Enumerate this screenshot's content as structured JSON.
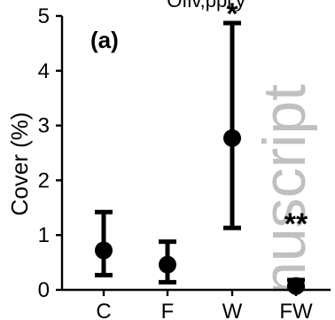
{
  "chart_data": {
    "type": "scatter",
    "panel_label": "(a)",
    "top_partial_text": "' ‘ ‘Ofiv,ppi‘y",
    "ylabel": "Cover (%)",
    "xlabel": "",
    "ylim": [
      0,
      5
    ],
    "y_ticks": [
      "0",
      "1",
      "2",
      "3",
      "4",
      "5"
    ],
    "categories": [
      "C",
      "F",
      "W",
      "FW"
    ],
    "series": [
      {
        "points": [
          {
            "label": "C",
            "x": "C",
            "y": 0.72,
            "low": 0.27,
            "high": 1.42
          },
          {
            "label": "F",
            "x": "F",
            "y": 0.46,
            "low": 0.14,
            "high": 0.88
          },
          {
            "label": "W",
            "x": "W",
            "y": 2.77,
            "low": 1.13,
            "high": 4.87
          },
          {
            "label": "FW",
            "x": "FW",
            "y": 0.07,
            "low": 0.02,
            "high": 0.18
          }
        ]
      }
    ],
    "annotations": [
      {
        "category": "W",
        "text": "*"
      },
      {
        "category": "FW",
        "text": "**"
      }
    ],
    "watermark_text": "nuscript",
    "grid": false,
    "legend": "none",
    "colors": {
      "marks": "#000000",
      "watermark": "#9b9b9b"
    }
  }
}
